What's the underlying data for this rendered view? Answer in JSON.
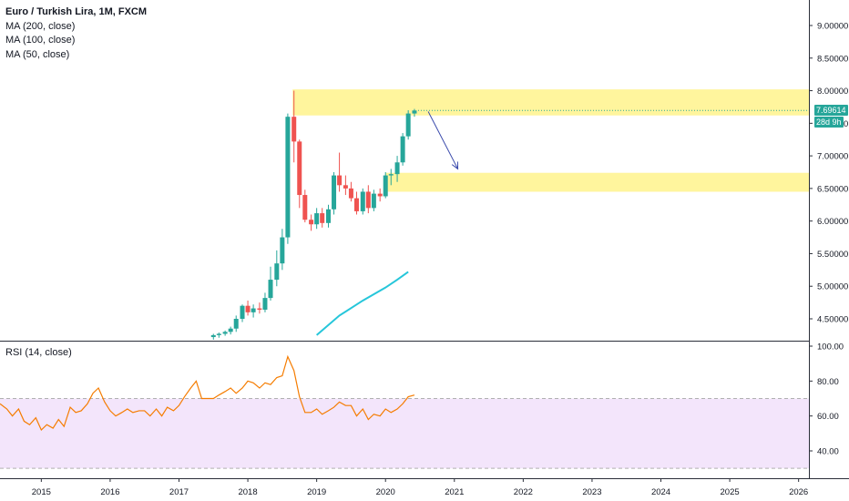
{
  "legend": {
    "title": "Euro / Turkish Lira, 1M, FXCM",
    "ma200": "MA (200, close)",
    "ma100": "MA (100, close)",
    "ma50": "MA (50, close)"
  },
  "rsi_label": "RSI (14, close)",
  "badges": {
    "last_price": "7.69614",
    "countdown": "28d 9h"
  },
  "colors": {
    "up": "#26a69a",
    "down": "#ef5350",
    "zone": "#fff59d",
    "ma": "#26c6da",
    "rsi_line": "#f57c00",
    "rsi_band": "#f3e5fb",
    "arrow": "#3949ab"
  },
  "chart_data": [
    {
      "type": "candlestick",
      "title": "Euro / Turkish Lira, 1M, FXCM",
      "x_ticks": [
        "2015",
        "2016",
        "2017",
        "2018",
        "2019",
        "2020",
        "2021",
        "2022",
        "2023",
        "2024",
        "2025",
        "2026"
      ],
      "y_ticks": [
        "4.50000",
        "5.00000",
        "5.50000",
        "6.00000",
        "6.50000",
        "7.00000",
        "7.50000",
        "8.00000",
        "8.50000",
        "9.00000"
      ],
      "ylim": [
        4.25,
        9.25
      ],
      "xlim": [
        2014.4,
        2026.15
      ],
      "candles": [
        {
          "t": 2017.5,
          "o": 4.22,
          "h": 4.27,
          "l": 4.18,
          "c": 4.25
        },
        {
          "t": 2017.58,
          "o": 4.25,
          "h": 4.29,
          "l": 4.21,
          "c": 4.27
        },
        {
          "t": 2017.67,
          "o": 4.27,
          "h": 4.32,
          "l": 4.24,
          "c": 4.3
        },
        {
          "t": 2017.75,
          "o": 4.3,
          "h": 4.38,
          "l": 4.26,
          "c": 4.35
        },
        {
          "t": 2017.83,
          "o": 4.35,
          "h": 4.55,
          "l": 4.3,
          "c": 4.5
        },
        {
          "t": 2017.92,
          "o": 4.5,
          "h": 4.72,
          "l": 4.45,
          "c": 4.7
        },
        {
          "t": 2018.0,
          "o": 4.7,
          "h": 4.78,
          "l": 4.55,
          "c": 4.6
        },
        {
          "t": 2018.08,
          "o": 4.6,
          "h": 4.72,
          "l": 4.52,
          "c": 4.66
        },
        {
          "t": 2018.17,
          "o": 4.66,
          "h": 4.75,
          "l": 4.58,
          "c": 4.64
        },
        {
          "t": 2018.25,
          "o": 4.64,
          "h": 4.9,
          "l": 4.6,
          "c": 4.82
        },
        {
          "t": 2018.33,
          "o": 4.82,
          "h": 5.3,
          "l": 4.78,
          "c": 5.1
        },
        {
          "t": 2018.42,
          "o": 5.1,
          "h": 5.55,
          "l": 5.0,
          "c": 5.35
        },
        {
          "t": 2018.5,
          "o": 5.35,
          "h": 5.88,
          "l": 5.25,
          "c": 5.75
        },
        {
          "t": 2018.58,
          "o": 5.75,
          "h": 7.65,
          "l": 5.65,
          "c": 7.6
        },
        {
          "t": 2018.67,
          "o": 7.6,
          "h": 8.0,
          "l": 6.9,
          "c": 7.22
        },
        {
          "t": 2018.75,
          "o": 7.22,
          "h": 7.25,
          "l": 6.2,
          "c": 6.4
        },
        {
          "t": 2018.83,
          "o": 6.4,
          "h": 6.48,
          "l": 5.98,
          "c": 6.02
        },
        {
          "t": 2018.92,
          "o": 6.02,
          "h": 6.1,
          "l": 5.85,
          "c": 5.95
        },
        {
          "t": 2019.0,
          "o": 5.95,
          "h": 6.2,
          "l": 5.88,
          "c": 6.12
        },
        {
          "t": 2019.08,
          "o": 6.12,
          "h": 6.2,
          "l": 5.9,
          "c": 5.97
        },
        {
          "t": 2019.17,
          "o": 5.97,
          "h": 6.25,
          "l": 5.9,
          "c": 6.18
        },
        {
          "t": 2019.25,
          "o": 6.18,
          "h": 6.75,
          "l": 6.1,
          "c": 6.7
        },
        {
          "t": 2019.33,
          "o": 6.7,
          "h": 7.05,
          "l": 6.45,
          "c": 6.55
        },
        {
          "t": 2019.42,
          "o": 6.55,
          "h": 6.7,
          "l": 6.4,
          "c": 6.5
        },
        {
          "t": 2019.5,
          "o": 6.5,
          "h": 6.6,
          "l": 6.3,
          "c": 6.35
        },
        {
          "t": 2019.58,
          "o": 6.35,
          "h": 6.45,
          "l": 6.1,
          "c": 6.15
        },
        {
          "t": 2019.67,
          "o": 6.15,
          "h": 6.5,
          "l": 6.1,
          "c": 6.45
        },
        {
          "t": 2019.75,
          "o": 6.45,
          "h": 6.55,
          "l": 6.12,
          "c": 6.2
        },
        {
          "t": 2019.83,
          "o": 6.2,
          "h": 6.48,
          "l": 6.15,
          "c": 6.42
        },
        {
          "t": 2019.92,
          "o": 6.42,
          "h": 6.5,
          "l": 6.3,
          "c": 6.38
        },
        {
          "t": 2020.0,
          "o": 6.38,
          "h": 6.75,
          "l": 6.35,
          "c": 6.7
        },
        {
          "t": 2020.08,
          "o": 6.7,
          "h": 6.8,
          "l": 6.55,
          "c": 6.72
        },
        {
          "t": 2020.17,
          "o": 6.72,
          "h": 7.0,
          "l": 6.6,
          "c": 6.9
        },
        {
          "t": 2020.25,
          "o": 6.9,
          "h": 7.35,
          "l": 6.85,
          "c": 7.3
        },
        {
          "t": 2020.33,
          "o": 7.3,
          "h": 7.7,
          "l": 7.25,
          "c": 7.65
        },
        {
          "t": 2020.42,
          "o": 7.65,
          "h": 7.72,
          "l": 7.6,
          "c": 7.69614
        }
      ],
      "moving_averages": [
        {
          "name": "MA (200, close)",
          "values": []
        },
        {
          "name": "MA (100, close)",
          "values": []
        },
        {
          "name": "MA (50, close)",
          "points": [
            [
              2019.0,
              4.25
            ],
            [
              2019.33,
              4.55
            ],
            [
              2019.67,
              4.78
            ],
            [
              2020.0,
              4.98
            ],
            [
              2020.17,
              5.1
            ],
            [
              2020.33,
              5.22
            ]
          ]
        }
      ],
      "zones": [
        {
          "y_from": 7.62,
          "y_to": 8.02,
          "x_from": 2018.65,
          "x_to": 2026.15
        },
        {
          "y_from": 6.45,
          "y_to": 6.74,
          "x_from": 2020.0,
          "x_to": 2026.15
        }
      ],
      "annotations": [
        {
          "type": "arrow",
          "from": [
            2020.62,
            7.68
          ],
          "to": [
            2021.05,
            6.8
          ]
        }
      ],
      "last_price": 7.69614
    },
    {
      "type": "line",
      "title": "RSI (14, close)",
      "y_ticks": [
        "40.00",
        "60.00",
        "80.00",
        "100.00"
      ],
      "ylim": [
        20,
        102
      ],
      "band": [
        30,
        70
      ],
      "series": [
        {
          "points": [
            [
              2014.4,
              67
            ],
            [
              2014.5,
              64
            ],
            [
              2014.58,
              60
            ],
            [
              2014.67,
              64
            ],
            [
              2014.75,
              57
            ],
            [
              2014.83,
              55
            ],
            [
              2014.92,
              59
            ],
            [
              2015.0,
              52
            ],
            [
              2015.08,
              55
            ],
            [
              2015.17,
              53
            ],
            [
              2015.25,
              58
            ],
            [
              2015.33,
              54
            ],
            [
              2015.42,
              65
            ],
            [
              2015.5,
              62
            ],
            [
              2015.58,
              63
            ],
            [
              2015.67,
              67
            ],
            [
              2015.75,
              73
            ],
            [
              2015.83,
              76
            ],
            [
              2015.92,
              68
            ],
            [
              2016.0,
              63
            ],
            [
              2016.08,
              60
            ],
            [
              2016.17,
              62
            ],
            [
              2016.25,
              64
            ],
            [
              2016.33,
              62
            ],
            [
              2016.42,
              63
            ],
            [
              2016.5,
              63
            ],
            [
              2016.58,
              60
            ],
            [
              2016.67,
              64
            ],
            [
              2016.75,
              60
            ],
            [
              2016.83,
              65
            ],
            [
              2016.92,
              63
            ],
            [
              2017.0,
              66
            ],
            [
              2017.08,
              71
            ],
            [
              2017.17,
              76
            ],
            [
              2017.25,
              80
            ],
            [
              2017.33,
              70
            ],
            [
              2017.42,
              70
            ],
            [
              2017.5,
              70
            ],
            [
              2017.58,
              72
            ],
            [
              2017.67,
              74
            ],
            [
              2017.75,
              76
            ],
            [
              2017.83,
              73
            ],
            [
              2017.92,
              76
            ],
            [
              2018.0,
              80
            ],
            [
              2018.08,
              79
            ],
            [
              2018.17,
              76
            ],
            [
              2018.25,
              79
            ],
            [
              2018.33,
              78
            ],
            [
              2018.42,
              82
            ],
            [
              2018.5,
              83
            ],
            [
              2018.58,
              94
            ],
            [
              2018.67,
              86
            ],
            [
              2018.75,
              71
            ],
            [
              2018.83,
              62
            ],
            [
              2018.92,
              62
            ],
            [
              2019.0,
              64
            ],
            [
              2019.08,
              61
            ],
            [
              2019.17,
              63
            ],
            [
              2019.25,
              65
            ],
            [
              2019.33,
              68
            ],
            [
              2019.42,
              66
            ],
            [
              2019.5,
              66
            ],
            [
              2019.58,
              60
            ],
            [
              2019.67,
              64
            ],
            [
              2019.75,
              58
            ],
            [
              2019.83,
              61
            ],
            [
              2019.92,
              60
            ],
            [
              2020.0,
              64
            ],
            [
              2020.08,
              62
            ],
            [
              2020.17,
              64
            ],
            [
              2020.25,
              67
            ],
            [
              2020.33,
              71
            ],
            [
              2020.42,
              72
            ]
          ]
        }
      ]
    }
  ]
}
